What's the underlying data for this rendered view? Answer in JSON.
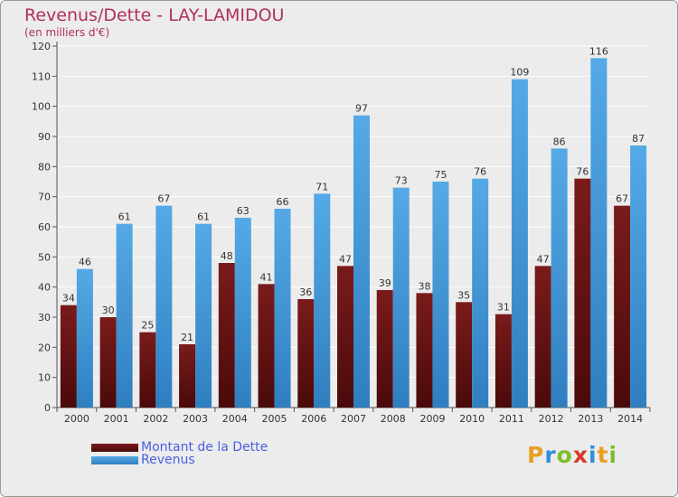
{
  "title": "Revenus/Dette - LAY-LAMIDOU",
  "subtitle": "(en milliers d'€)",
  "legend": {
    "debt_label": "Montant de la Dette",
    "revenue_label": "Revenus"
  },
  "logo": {
    "text": "Proxiti",
    "letters": [
      "P",
      "r",
      "o",
      "x",
      "i",
      "t",
      "i"
    ]
  },
  "colors": {
    "debt": "#7a1b1b",
    "debt_dark": "#4a0a0a",
    "revenue": "#55a9e6",
    "revenue_dark": "#2f7fc0",
    "title": "#b0305a",
    "grid": "#ffffff",
    "background": "#ececec"
  },
  "chart_data": {
    "type": "bar",
    "categories": [
      "2000",
      "2001",
      "2002",
      "2003",
      "2004",
      "2005",
      "2006",
      "2007",
      "2008",
      "2009",
      "2010",
      "2011",
      "2012",
      "2013",
      "2014"
    ],
    "series": [
      {
        "name": "Montant de la Dette",
        "values": [
          34,
          30,
          25,
          21,
          48,
          41,
          36,
          47,
          39,
          38,
          35,
          31,
          47,
          76,
          67
        ]
      },
      {
        "name": "Revenus",
        "values": [
          46,
          61,
          67,
          61,
          63,
          66,
          71,
          97,
          73,
          75,
          76,
          109,
          86,
          116,
          87
        ]
      }
    ],
    "ylim": [
      0,
      120
    ],
    "yticks": [
      0,
      10,
      20,
      30,
      40,
      50,
      60,
      70,
      80,
      90,
      100,
      110,
      120
    ],
    "grid": true,
    "legend_position": "bottom-left"
  }
}
